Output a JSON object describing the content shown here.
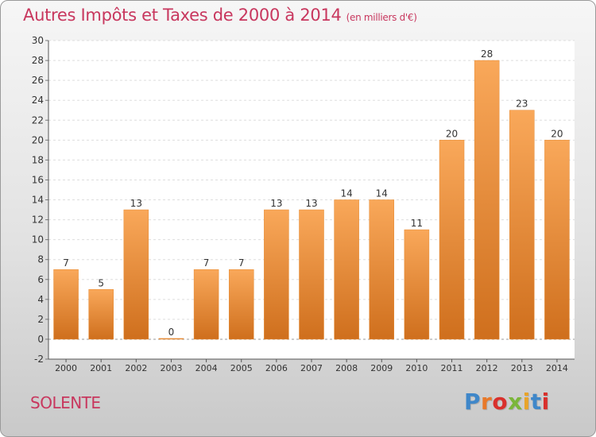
{
  "header": {
    "title": "Autres Impôts et Taxes de 2000 à 2014",
    "unit": "(en milliers d'€)"
  },
  "footer": {
    "commune": "SOLENTE",
    "brand": "Proxiti"
  },
  "colors": {
    "title": "#c8375e",
    "bar_light": "#f9a85a",
    "bar_dark": "#cf6f1d",
    "brand_letters": [
      "#3f87c9",
      "#e8792a",
      "#d9302c",
      "#7bb63a",
      "#e8a42a",
      "#3f87c9",
      "#d9302c"
    ]
  },
  "chart_data": {
    "type": "bar",
    "title": "Autres Impôts et Taxes de 2000 à 2014",
    "categories": [
      "2000",
      "2001",
      "2002",
      "2003",
      "2004",
      "2005",
      "2006",
      "2007",
      "2008",
      "2009",
      "2010",
      "2011",
      "2012",
      "2013",
      "2014"
    ],
    "values": [
      7,
      5,
      13,
      0,
      7,
      7,
      13,
      13,
      14,
      14,
      11,
      20,
      28,
      23,
      20
    ],
    "ylim": [
      -2,
      30
    ],
    "yticks": [
      -2,
      0,
      2,
      4,
      6,
      8,
      10,
      12,
      14,
      16,
      18,
      20,
      22,
      24,
      26,
      28,
      30
    ],
    "grid": true,
    "data_labels": true
  }
}
